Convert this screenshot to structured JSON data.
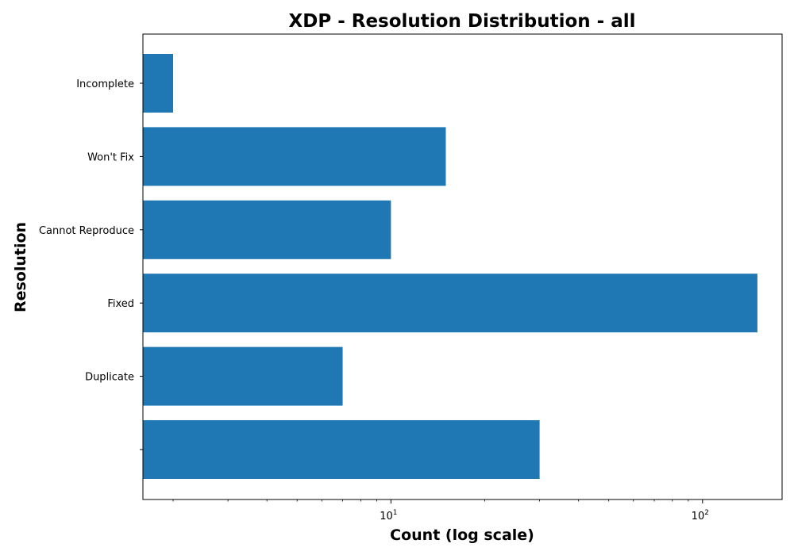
{
  "chart_data": {
    "type": "bar",
    "orientation": "horizontal",
    "title": "XDP - Resolution Distribution - all",
    "xlabel": "Count (log scale)",
    "ylabel": "Resolution",
    "xscale": "log",
    "xlim": [
      1.6,
      180
    ],
    "categories": [
      "",
      "Duplicate",
      "Fixed",
      "Cannot Reproduce",
      "Won't Fix",
      "Incomplete"
    ],
    "values": [
      30,
      7,
      150,
      10,
      15,
      2
    ],
    "bar_color": "#1f77b4",
    "grid": false,
    "x_major_ticks": [
      {
        "base": "10",
        "exp": "1",
        "value": 10
      },
      {
        "base": "10",
        "exp": "2",
        "value": 100
      }
    ]
  }
}
